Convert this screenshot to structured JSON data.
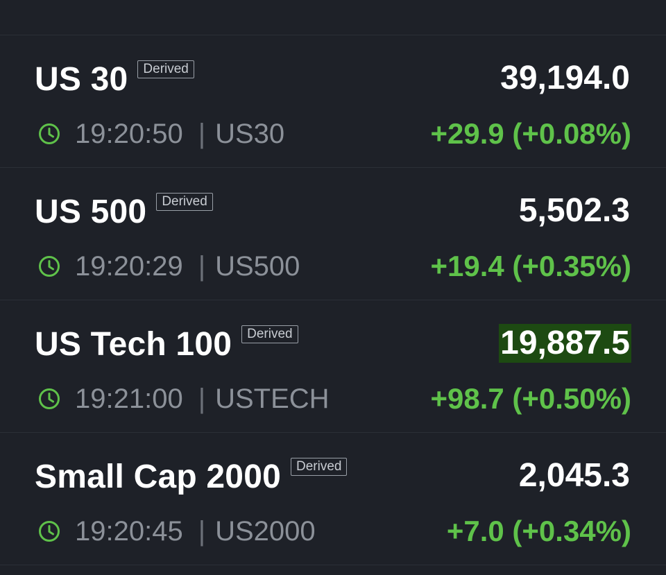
{
  "colors": {
    "background": "#1e2128",
    "positive": "#5fc24a",
    "flash_highlight": "#1d4a12"
  },
  "rows": [
    {
      "name": "US 30",
      "badge": "Derived",
      "price": "39,194.0",
      "time": "19:20:50",
      "separator": "|",
      "symbol": "US30",
      "change": "+29.9 (+0.08%)",
      "highlighted": false
    },
    {
      "name": "US 500",
      "badge": "Derived",
      "price": "5,502.3",
      "time": "19:20:29",
      "separator": "|",
      "symbol": "US500",
      "change": "+19.4 (+0.35%)",
      "highlighted": false
    },
    {
      "name": "US Tech 100",
      "badge": "Derived",
      "price": "19,887.5",
      "time": "19:21:00",
      "separator": "|",
      "symbol": "USTECH",
      "change": "+98.7 (+0.50%)",
      "highlighted": true
    },
    {
      "name": "Small Cap 2000",
      "badge": "Derived",
      "price": "2,045.3",
      "time": "19:20:45",
      "separator": "|",
      "symbol": "US2000",
      "change": "+7.0 (+0.34%)",
      "highlighted": false
    }
  ],
  "icons": {
    "clock": "clock-icon"
  }
}
